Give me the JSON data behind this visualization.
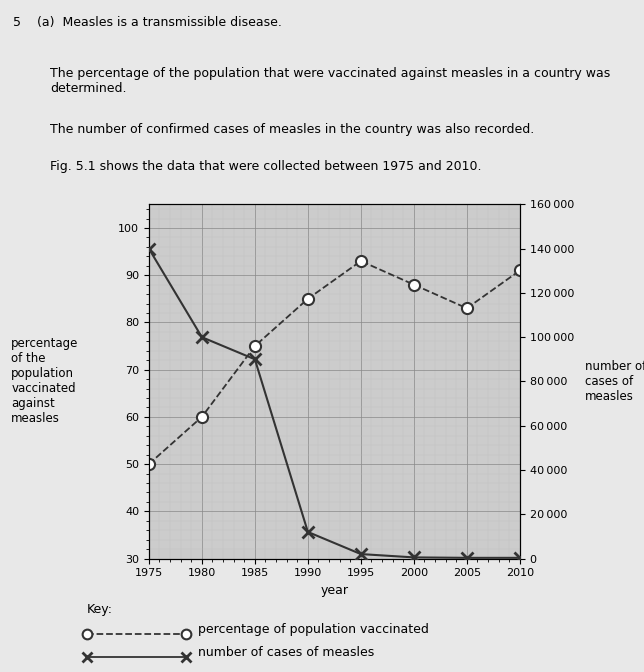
{
  "header_line1": "5    (a)  Measles is a transmissible disease.",
  "header_line2": "The percentage of the population that were vaccinated against measles in a country was\ndetermined.",
  "header_line3": "The number of confirmed cases of measles in the country was also recorded.",
  "header_line4": "Fig. 5.1 shows the data that were collected between 1975 and 2010.",
  "xlabel": "year",
  "ylabel_left": "percentage\nof the\npopulation\nvaccinated\nagainst\nmeasles",
  "ylabel_right": "number of\ncases of\nmeasles",
  "ylim_left": [
    30,
    105
  ],
  "ylim_right": [
    0,
    160000
  ],
  "xlim": [
    1975,
    2010
  ],
  "yticks_left": [
    30,
    40,
    50,
    60,
    70,
    80,
    90,
    100
  ],
  "yticks_right": [
    0,
    20000,
    40000,
    60000,
    80000,
    100000,
    120000,
    140000,
    160000
  ],
  "xticks": [
    1975,
    1980,
    1985,
    1990,
    1995,
    2000,
    2005,
    2010
  ],
  "vax_years": [
    1975,
    1980,
    1985,
    1990,
    1995,
    2000,
    2005,
    2010
  ],
  "vax_values": [
    50,
    60,
    75,
    85,
    93,
    88,
    83,
    91
  ],
  "cases_years": [
    1975,
    1980,
    1985,
    1990,
    1995,
    2000,
    2005,
    2010
  ],
  "cases_values": [
    140000,
    100000,
    90000,
    12000,
    2000,
    500,
    300,
    300
  ],
  "line_color": "#333333",
  "grid_color": "#888888",
  "grid_minor_color": "#bbbbbb",
  "background_color": "#cccccc",
  "fig_background": "#e8e8e8",
  "key_vax_label": "percentage of population vaccinated",
  "key_cases_label": "number of cases of measles"
}
